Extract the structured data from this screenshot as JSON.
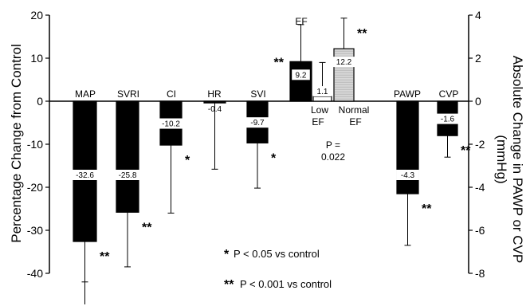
{
  "chart_data": {
    "type": "bar",
    "ylabel_left": "Percentage Change from Control",
    "ylabel_right": "Absolute Change in PAWP or CVP",
    "ylabel_right_unit": "(mmHg)",
    "ylim_left": [
      -40,
      20
    ],
    "yticks_left": [
      "20",
      "10",
      "0",
      "-10",
      "-20",
      "-30",
      "-40"
    ],
    "ylim_right": [
      -8,
      4
    ],
    "yticks_right": [
      "4",
      "2",
      "0",
      "-2",
      "-4",
      "-6",
      "-8"
    ],
    "left_bars": [
      {
        "category": "MAP",
        "value": -32.6,
        "value_label": "-32.6",
        "error_to": -42.0,
        "sig": "**",
        "fill": "#000000"
      },
      {
        "category": "SVRI",
        "value": -25.8,
        "value_label": "-25.8",
        "error_to": -38.5,
        "sig": "**",
        "fill": "#000000"
      },
      {
        "category": "CI",
        "value": -10.2,
        "value_label": "-10.2",
        "error_to": -26.0,
        "sig": "*",
        "fill": "#000000"
      },
      {
        "category": "HR",
        "value": -0.4,
        "value_label": "-0.4",
        "error_to": -15.8,
        "sig": "",
        "fill": "#000000"
      },
      {
        "category": "SVI",
        "value": -9.7,
        "value_label": "-9.7",
        "error_to": -20.2,
        "sig": "*",
        "fill": "#000000"
      },
      {
        "category": "EF",
        "value": 9.2,
        "value_label": "9.2",
        "error_to": 17.8,
        "sig": "**",
        "fill": "#000000"
      },
      {
        "category": "Low EF",
        "value": 1.1,
        "value_label": "1.1",
        "error_to": 9.0,
        "sig": "",
        "fill": "#ffffff"
      },
      {
        "category": "Normal EF",
        "value": 12.2,
        "value_label": "12.2",
        "error_to": 19.3,
        "sig": "**",
        "fill": "#dcdcdc"
      }
    ],
    "right_bars": [
      {
        "category": "PAWP",
        "value": -4.3,
        "value_label": "-4.3",
        "error_to": -6.7,
        "sig": "**",
        "fill": "#000000"
      },
      {
        "category": "CVP",
        "value": -1.6,
        "value_label": "-1.6",
        "error_to": -2.6,
        "sig": "**",
        "fill": "#000000"
      }
    ],
    "ef_group": {
      "low_line1": "Low",
      "low_line2": "EF",
      "normal_line1": "Normal",
      "normal_line2": "EF",
      "p_line1": "P =",
      "p_line2": "0.022"
    },
    "legend": {
      "single_star": "*",
      "single_text": "P < 0.05 vs control",
      "double_star": "**",
      "double_text": "P < 0.001 vs control"
    }
  }
}
